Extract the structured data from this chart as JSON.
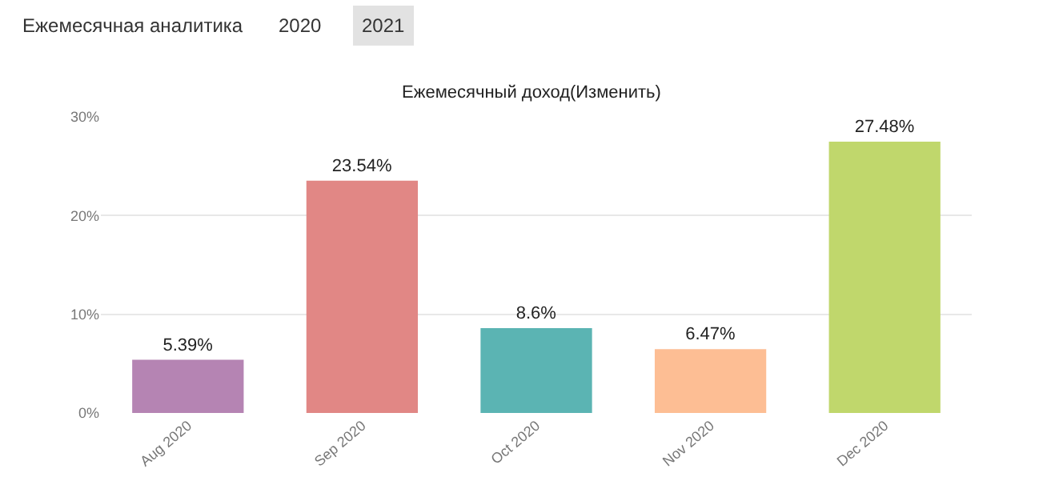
{
  "chart_data": {
    "type": "bar",
    "title": "Ежемесячный доход(Изменить)",
    "annotations": [
      "Ежемесячная аналитика",
      "2020",
      "2021"
    ],
    "categories": [
      "Aug 2020",
      "Sep 2020",
      "Oct 2020",
      "Nov 2020",
      "Dec 2020"
    ],
    "values": [
      5.39,
      23.54,
      8.6,
      6.47,
      27.48
    ],
    "colors": [
      "#b584b3",
      "#e18785",
      "#5bb4b3",
      "#fdbe94",
      "#c0d76c"
    ],
    "value_labels": [
      "5.39%",
      "23.54%",
      "8.6%",
      "6.47%",
      "27.48%"
    ],
    "ylim": [
      0,
      30
    ],
    "yticks": [
      {
        "value": 0,
        "label": "0%"
      },
      {
        "value": 10,
        "label": "10%"
      },
      {
        "value": 20,
        "label": "20%"
      },
      {
        "value": 30,
        "label": "30%"
      }
    ],
    "grid": "y"
  }
}
